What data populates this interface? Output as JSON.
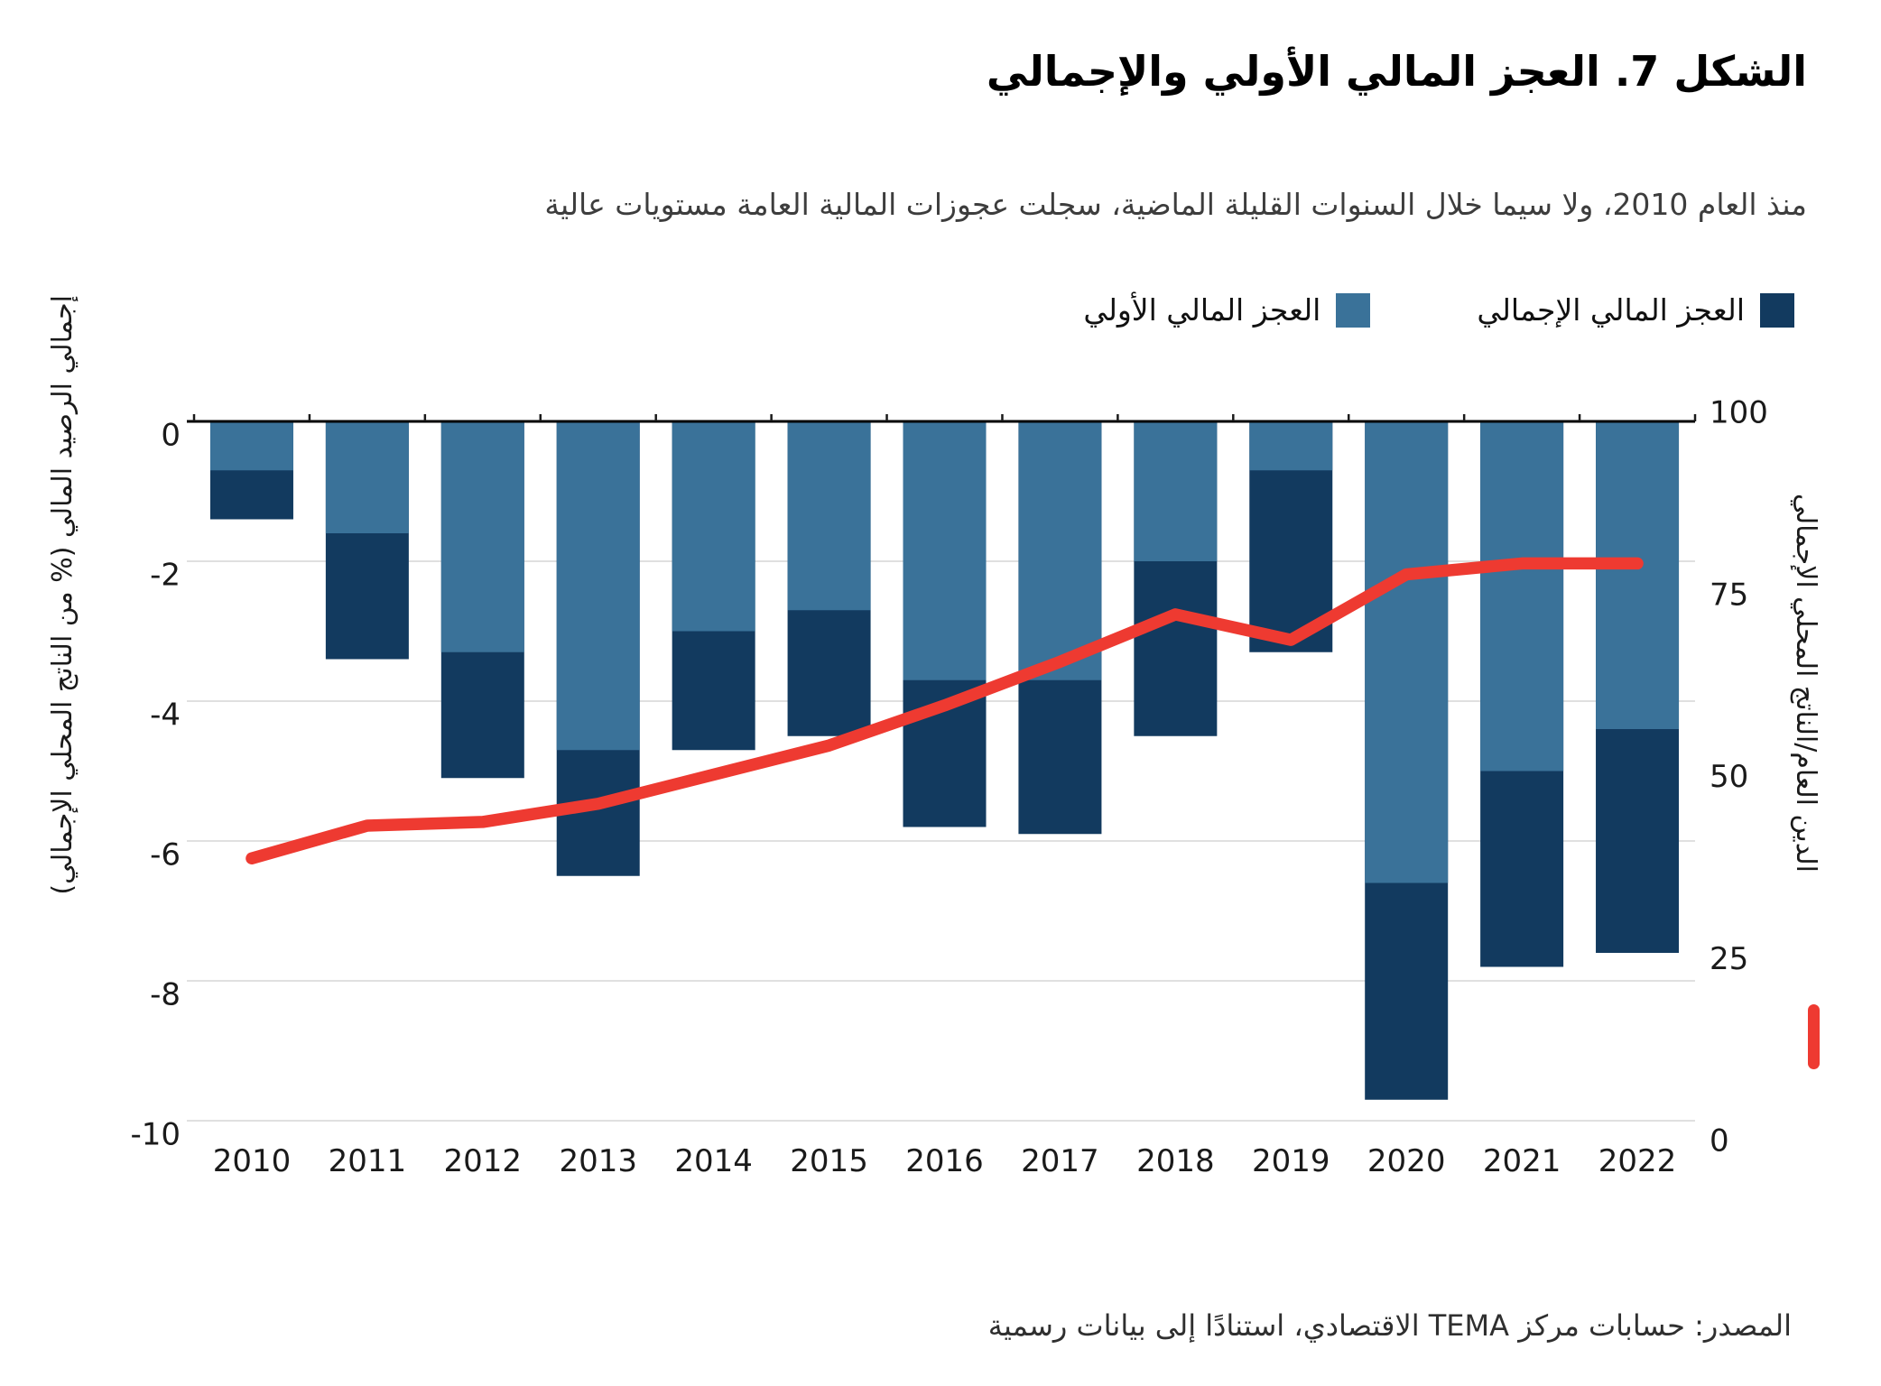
{
  "title": "الشكل 7. العجز المالي الأولي والإجمالي",
  "subtitle": "منذ العام 2010، ولا سيما خلال السنوات القليلة الماضية، سجلت عجوزات المالية العامة مستويات عالية",
  "legend": {
    "overall_label": "العجز المالي الإجمالي",
    "primary_label": "العجز المالي الأولي",
    "line_label": "الدين العام/الناتج المحلي الإجمالي"
  },
  "source": "المصدر: حسابات مركز TEMA الاقتصادي، استنادًا إلى بيانات رسمية",
  "colors": {
    "primary_bar": "#3a7299",
    "overall_bar": "#123a5f",
    "debt_line": "#ee3a31",
    "gridline": "#d6d6d6",
    "zero_line": "#000000",
    "text": "#1a1a1a"
  },
  "chart_data": {
    "type": "bar+line",
    "categories": [
      "2010",
      "2011",
      "2012",
      "2013",
      "2014",
      "2015",
      "2016",
      "2017",
      "2018",
      "2019",
      "2020",
      "2021",
      "2022"
    ],
    "series": [
      {
        "name": "العجز المالي الأولي",
        "type": "bar",
        "axis": "left",
        "color": "#3a7299",
        "values": [
          -0.7,
          -1.6,
          -3.3,
          -4.7,
          -3.0,
          -2.7,
          -3.7,
          -3.7,
          -2.0,
          -0.7,
          -6.6,
          -5.0,
          -4.4
        ]
      },
      {
        "name": "العجز المالي الإجمالي",
        "type": "bar",
        "axis": "left",
        "color": "#123a5f",
        "values": [
          -1.4,
          -3.4,
          -5.1,
          -6.5,
          -4.7,
          -4.5,
          -5.8,
          -5.9,
          -4.5,
          -3.3,
          -9.7,
          -7.8,
          -7.6
        ]
      },
      {
        "name": "الدين العام/الناتج المحلي الإجمالي",
        "type": "line",
        "axis": "right",
        "color": "#ee3a31",
        "values": [
          39,
          43.5,
          44,
          46.5,
          50.5,
          54.5,
          60,
          66,
          72.5,
          69,
          78,
          79.5,
          79.5
        ]
      }
    ],
    "left_axis": {
      "label": "إجمالي الرصيد المالي (% من الناتج المحلي الإجمالي)",
      "ticks": [
        0,
        -2,
        -4,
        -6,
        -8,
        -10
      ],
      "range": [
        -10,
        0
      ]
    },
    "right_axis": {
      "label": "الدين العام/الناتج المحلي الإجمالي",
      "ticks": [
        100,
        75,
        50,
        25,
        0
      ],
      "range": [
        0,
        100
      ]
    },
    "grid": true,
    "legend_position": "top",
    "bars_overlaid": true
  }
}
